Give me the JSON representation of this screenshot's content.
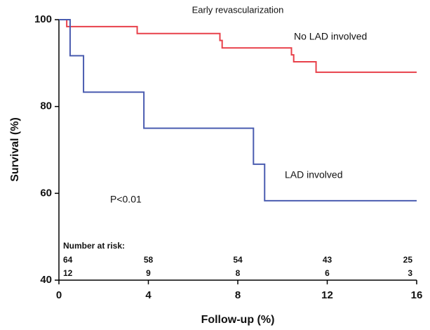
{
  "chart_data": {
    "type": "line",
    "step": true,
    "title": "Early revascularization",
    "x_label": "Follow-up (%)",
    "y_label": "Survival (%)",
    "xlim": [
      0,
      16
    ],
    "xticks": [
      0,
      4,
      8,
      12,
      16
    ],
    "ylim": [
      40,
      100
    ],
    "yticks": [
      40,
      60,
      80,
      100
    ],
    "series": [
      {
        "name": "No LAD involved",
        "color": "#e8404a",
        "x": [
          0,
          0.35,
          3.5,
          7.2,
          7.3,
          10.4,
          10.5,
          11.5,
          16
        ],
        "values": [
          100,
          98.4,
          96.8,
          95.2,
          93.5,
          91.9,
          90.3,
          87.9,
          87.9
        ]
      },
      {
        "name": "LAD involved",
        "color": "#4a5cb0",
        "x": [
          0,
          0.5,
          1.1,
          3.8,
          8.7,
          9.2,
          16
        ],
        "values": [
          100,
          91.7,
          83.3,
          75,
          66.7,
          58.3,
          58.3
        ]
      }
    ],
    "annotations": [
      "P<0.01"
    ],
    "risk_table": {
      "title": "Number at risk:",
      "rows": [
        [
          64,
          58,
          54,
          43,
          25
        ],
        [
          12,
          9,
          8,
          6,
          3
        ]
      ]
    }
  }
}
